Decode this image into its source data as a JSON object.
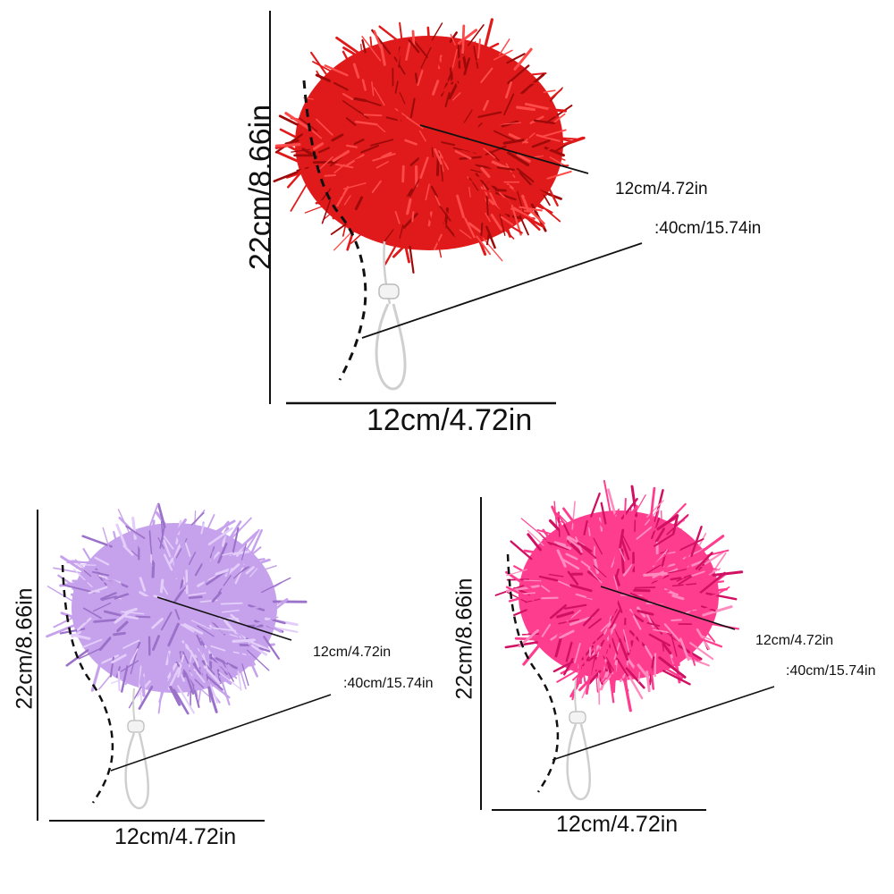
{
  "products": [
    {
      "color_name": "red",
      "color": "#e01a1a",
      "color_dark": "#9e0a0a",
      "color_light": "#ff4a4a",
      "width_label": "12cm/4.72in",
      "height_label": "22cm/8.66in",
      "depth_label": "12cm/4.72in",
      "cord_label": ":40cm/15.74in"
    },
    {
      "color_name": "lavender",
      "color": "#c7a2ec",
      "color_dark": "#9b72c9",
      "color_light": "#e3cdfa",
      "width_label": "12cm/4.72in",
      "height_label": "22cm/8.66in",
      "depth_label": "12cm/4.72in",
      "cord_label": ":40cm/15.74in"
    },
    {
      "color_name": "pink",
      "color": "#ff3d8f",
      "color_dark": "#d01062",
      "color_light": "#ff8cbf",
      "width_label": "12cm/4.72in",
      "height_label": "22cm/8.66in",
      "depth_label": "12cm/4.72in",
      "cord_label": ":40cm/15.74in"
    }
  ]
}
